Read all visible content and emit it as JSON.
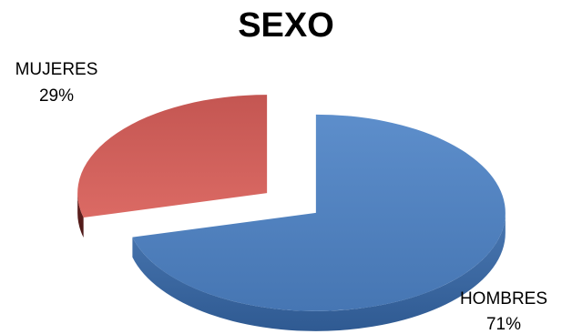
{
  "chart_data": {
    "type": "pie",
    "title": "SEXO",
    "categories": [
      "HOMBRES",
      "MUJERES"
    ],
    "values": [
      71,
      29
    ],
    "value_labels": [
      "71%",
      "29%"
    ],
    "colors": [
      "#4f81bd",
      "#c0504d"
    ],
    "style": "3d-exploded"
  }
}
